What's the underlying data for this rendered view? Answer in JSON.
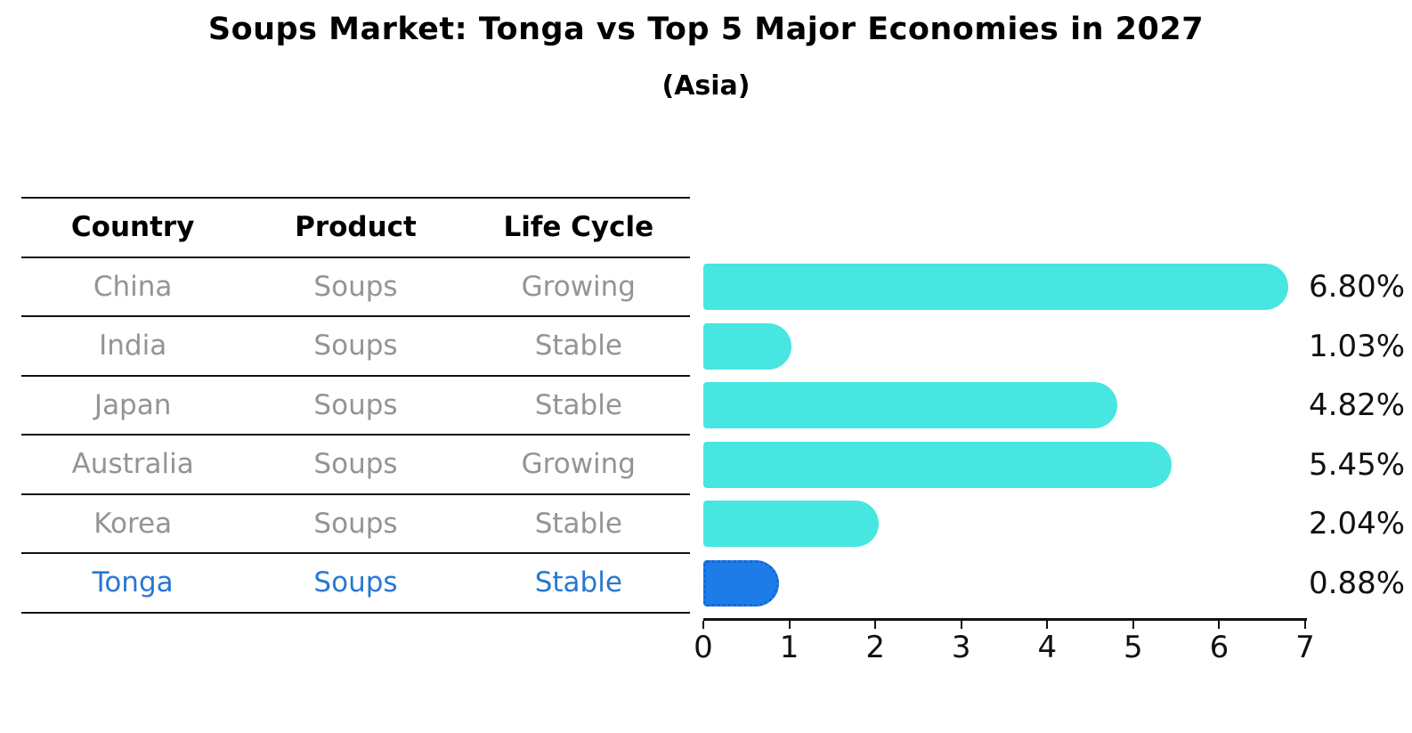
{
  "title": "Soups Market: Tonga vs Top 5 Major Economies in 2027",
  "subtitle": "(Asia)",
  "table": {
    "headers": [
      "Country",
      "Product",
      "Life Cycle"
    ],
    "rows": [
      {
        "country": "China",
        "product": "Soups",
        "life_cycle": "Growing",
        "highlight": false
      },
      {
        "country": "India",
        "product": "Soups",
        "life_cycle": "Stable",
        "highlight": false
      },
      {
        "country": "Japan",
        "product": "Soups",
        "life_cycle": "Stable",
        "highlight": false
      },
      {
        "country": "Australia",
        "product": "Soups",
        "life_cycle": "Growing",
        "highlight": false
      },
      {
        "country": "Korea",
        "product": "Soups",
        "life_cycle": "Stable",
        "highlight": false
      },
      {
        "country": "Tonga",
        "product": "Soups",
        "life_cycle": "Stable",
        "highlight": true
      }
    ]
  },
  "chart_data": {
    "type": "bar",
    "orientation": "horizontal",
    "title": "Soups Market: Tonga vs Top 5 Major Economies in 2027",
    "subtitle": "(Asia)",
    "categories": [
      "China",
      "India",
      "Japan",
      "Australia",
      "Korea",
      "Tonga"
    ],
    "values": [
      6.8,
      1.03,
      4.82,
      5.45,
      2.04,
      0.88
    ],
    "value_labels": [
      "6.80%",
      "1.03%",
      "4.82%",
      "5.45%",
      "2.04%",
      "0.88%"
    ],
    "xlabel": "",
    "ylabel": "",
    "xlim": [
      0,
      7
    ],
    "xticks": [
      0,
      1,
      2,
      3,
      4,
      5,
      6,
      7
    ],
    "grid": false,
    "legend": false,
    "highlight_index": 5,
    "bar_color_default": "#48e6e1",
    "bar_color_highlight": "#1e7ce9"
  },
  "colors": {
    "background": "#ffffff",
    "bar_default": "#48e6e1",
    "bar_highlight": "#1e7ce9",
    "bar_highlight_border": "#1565d8",
    "table_text": "#949494",
    "highlight_text": "#2878d2",
    "heading_text": "#000000",
    "axis": "#111111"
  }
}
